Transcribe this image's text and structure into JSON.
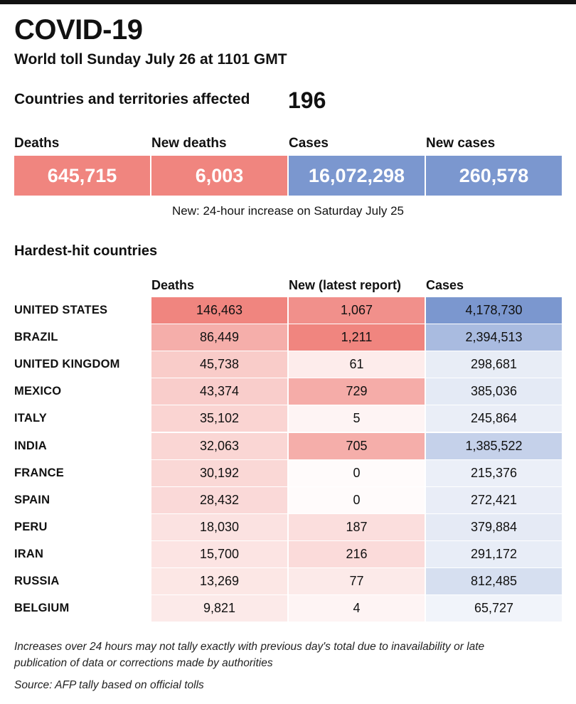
{
  "header": {
    "title": "COVID-19",
    "subtitle": "World toll Sunday July 26 at 1101 GMT"
  },
  "affected": {
    "label": "Countries and territories affected",
    "value": "196"
  },
  "stats": [
    {
      "label": "Deaths",
      "value": "645,715",
      "color": "#f0857f"
    },
    {
      "label": "New deaths",
      "value": "6,003",
      "color": "#f0857f"
    },
    {
      "label": "Cases",
      "value": "16,072,298",
      "color": "#7b97cf"
    },
    {
      "label": "New cases",
      "value": "260,578",
      "color": "#7b97cf"
    }
  ],
  "new_note": "New: 24-hour increase on Saturday July 25",
  "section_title": "Hardest-hit countries",
  "colors": {
    "deaths_color": "#f0857f",
    "cases_color": "#7b97cf"
  },
  "chart_data": {
    "type": "table",
    "title": "Hardest-hit countries",
    "columns": [
      "Deaths",
      "New (latest report)",
      "Cases"
    ],
    "rows": [
      {
        "country": "UNITED STATES",
        "deaths": "146,463",
        "new": "1,067",
        "cases": "4,178,730"
      },
      {
        "country": "BRAZIL",
        "deaths": "86,449",
        "new": "1,211",
        "cases": "2,394,513"
      },
      {
        "country": "UNITED KINGDOM",
        "deaths": "45,738",
        "new": "61",
        "cases": "298,681"
      },
      {
        "country": "MEXICO",
        "deaths": "43,374",
        "new": "729",
        "cases": "385,036"
      },
      {
        "country": "ITALY",
        "deaths": "35,102",
        "new": "5",
        "cases": "245,864"
      },
      {
        "country": "INDIA",
        "deaths": "32,063",
        "new": "705",
        "cases": "1,385,522"
      },
      {
        "country": "FRANCE",
        "deaths": "30,192",
        "new": "0",
        "cases": "215,376"
      },
      {
        "country": "SPAIN",
        "deaths": "28,432",
        "new": "0",
        "cases": "272,421"
      },
      {
        "country": "PERU",
        "deaths": "18,030",
        "new": "187",
        "cases": "379,884"
      },
      {
        "country": "IRAN",
        "deaths": "15,700",
        "new": "216",
        "cases": "291,172"
      },
      {
        "country": "RUSSIA",
        "deaths": "13,269",
        "new": "77",
        "cases": "812,485"
      },
      {
        "country": "BELGIUM",
        "deaths": "9,821",
        "new": "4",
        "cases": "65,727"
      }
    ]
  },
  "footnote": "Increases over 24 hours may not tally exactly with previous day's total due to inavailability or late publication of data or corrections made by authorities",
  "source": "Source: AFP tally based on official tolls"
}
